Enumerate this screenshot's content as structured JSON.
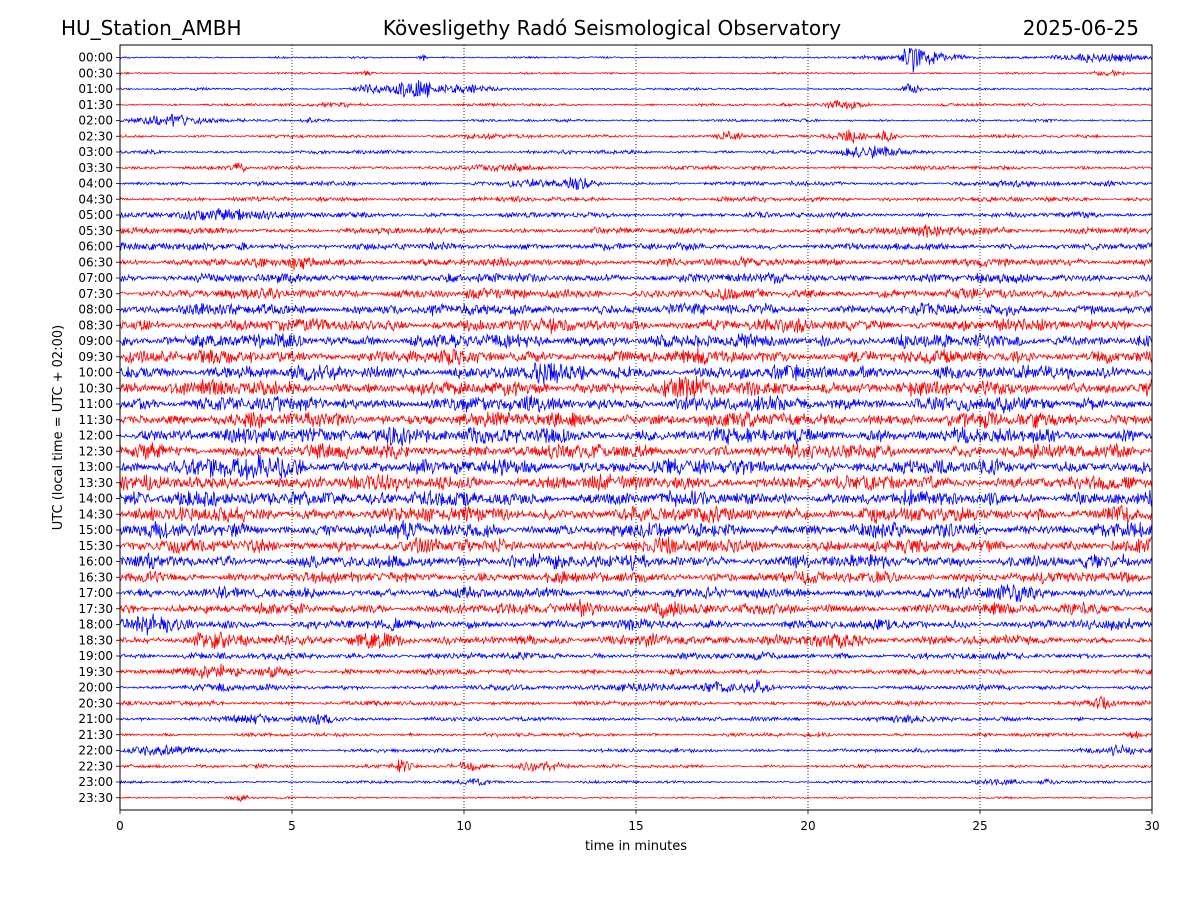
{
  "header": {
    "station": "HU_Station_AMBH",
    "title": "Kövesligethy Radó Seismological Observatory",
    "date": "2025-06-25"
  },
  "chart_data": {
    "type": "line",
    "chart_kind": "helicorder",
    "xlabel": "time in minutes",
    "ylabel": "UTC (local time = UTC + 02:00)",
    "xlim": [
      0,
      30
    ],
    "x_ticks": [
      0,
      5,
      10,
      15,
      20,
      25,
      30
    ],
    "x_grid": "dotted vertical lines at each x tick",
    "row_labels": [
      "00:00",
      "00:30",
      "01:00",
      "01:30",
      "02:00",
      "02:30",
      "03:00",
      "03:30",
      "04:00",
      "04:30",
      "05:00",
      "05:30",
      "06:00",
      "06:30",
      "07:00",
      "07:30",
      "08:00",
      "08:30",
      "09:00",
      "09:30",
      "10:00",
      "10:30",
      "11:00",
      "11:30",
      "12:00",
      "12:30",
      "13:00",
      "13:30",
      "14:00",
      "14:30",
      "15:00",
      "15:30",
      "16:00",
      "16:30",
      "17:00",
      "17:30",
      "18:00",
      "18:30",
      "19:00",
      "19:30",
      "20:00",
      "20:30",
      "21:00",
      "21:30",
      "22:00",
      "22:30",
      "23:00",
      "23:30"
    ],
    "trace_colors": [
      "#0000ff",
      "#ff0000"
    ],
    "trace_color_rule": "alternating rows, starting with blue at 00:00",
    "row_activity": [
      0.35,
      0.35,
      0.45,
      0.5,
      0.5,
      0.6,
      0.7,
      0.75,
      0.8,
      0.9,
      1.0,
      1.2,
      1.4,
      1.6,
      1.8,
      2.0,
      2.2,
      2.5,
      2.6,
      2.7,
      2.8,
      2.9,
      2.9,
      2.9,
      2.9,
      2.8,
      2.9,
      2.9,
      2.9,
      2.9,
      2.8,
      2.7,
      2.5,
      2.2,
      2.1,
      2.0,
      1.9,
      1.7,
      1.3,
      1.1,
      1.0,
      0.9,
      0.8,
      0.7,
      0.7,
      0.6,
      0.5,
      0.35
    ],
    "bursts": [
      {
        "row": "00:00",
        "minute": 23.1,
        "width_min": 0.4,
        "amp": 5.0
      },
      {
        "row": "00:00",
        "minute": 23.8,
        "width_min": 0.8,
        "amp": 1.6
      },
      {
        "row": "00:00",
        "minute": 22.0,
        "width_min": 0.5,
        "amp": 0.8
      },
      {
        "row": "00:00",
        "minute": 28.6,
        "width_min": 1.2,
        "amp": 1.8
      },
      {
        "row": "00:00",
        "minute": 8.8,
        "width_min": 0.1,
        "amp": 1.4
      },
      {
        "row": "00:30",
        "minute": 28.8,
        "width_min": 0.4,
        "amp": 1.2
      },
      {
        "row": "00:30",
        "minute": 7.2,
        "width_min": 0.3,
        "amp": 0.6
      },
      {
        "row": "01:00",
        "minute": 8.4,
        "width_min": 0.4,
        "amp": 3.0
      },
      {
        "row": "01:00",
        "minute": 8.8,
        "width_min": 0.2,
        "amp": 3.5
      },
      {
        "row": "01:00",
        "minute": 7.4,
        "width_min": 0.5,
        "amp": 2.0
      },
      {
        "row": "01:00",
        "minute": 10.0,
        "width_min": 0.8,
        "amp": 1.6
      },
      {
        "row": "01:00",
        "minute": 23.0,
        "width_min": 0.2,
        "amp": 2.5
      },
      {
        "row": "01:30",
        "minute": 21.0,
        "width_min": 0.5,
        "amp": 2.2
      },
      {
        "row": "01:30",
        "minute": 6.5,
        "width_min": 0.6,
        "amp": 0.9
      },
      {
        "row": "02:00",
        "minute": 1.5,
        "width_min": 1.2,
        "amp": 2.2
      },
      {
        "row": "02:00",
        "minute": 5.5,
        "width_min": 0.2,
        "amp": 0.8
      },
      {
        "row": "02:30",
        "minute": 17.7,
        "width_min": 0.4,
        "amp": 1.6
      },
      {
        "row": "02:30",
        "minute": 21.2,
        "width_min": 0.5,
        "amp": 2.4
      },
      {
        "row": "02:30",
        "minute": 22.3,
        "width_min": 0.3,
        "amp": 2.0
      },
      {
        "row": "02:30",
        "minute": 10.5,
        "width_min": 0.6,
        "amp": 1.0
      },
      {
        "row": "03:00",
        "minute": 22.0,
        "width_min": 1.0,
        "amp": 1.8
      },
      {
        "row": "03:30",
        "minute": 3.5,
        "width_min": 0.15,
        "amp": 2.2
      },
      {
        "row": "03:30",
        "minute": 11.0,
        "width_min": 1.0,
        "amp": 0.8
      },
      {
        "row": "04:00",
        "minute": 13.3,
        "width_min": 0.4,
        "amp": 2.0
      },
      {
        "row": "04:00",
        "minute": 12.0,
        "width_min": 0.6,
        "amp": 1.2
      },
      {
        "row": "04:00",
        "minute": 28.6,
        "width_min": 0.3,
        "amp": 1.2
      },
      {
        "row": "04:00",
        "minute": 26.0,
        "width_min": 0.5,
        "amp": 1.0
      },
      {
        "row": "05:00",
        "minute": 3.0,
        "width_min": 1.5,
        "amp": 2.0
      },
      {
        "row": "05:30",
        "minute": 24.0,
        "width_min": 1.5,
        "amp": 1.5
      },
      {
        "row": "06:00",
        "minute": 3.6,
        "width_min": 0.15,
        "amp": 2.0
      },
      {
        "row": "06:30",
        "minute": 5.2,
        "width_min": 0.5,
        "amp": 1.6
      },
      {
        "row": "10:00",
        "minute": 12.4,
        "width_min": 0.6,
        "amp": 1.8
      },
      {
        "row": "10:30",
        "minute": 16.5,
        "width_min": 0.5,
        "amp": 2.0
      },
      {
        "row": "12:00",
        "minute": 8.0,
        "width_min": 1.0,
        "amp": 2.0
      },
      {
        "row": "13:00",
        "minute": 4.0,
        "width_min": 1.2,
        "amp": 2.2
      },
      {
        "row": "14:00",
        "minute": 5.8,
        "width_min": 0.5,
        "amp": 2.0
      },
      {
        "row": "16:00",
        "minute": 12.0,
        "width_min": 0.8,
        "amp": 1.8
      },
      {
        "row": "17:00",
        "minute": 26.0,
        "width_min": 0.8,
        "amp": 1.5
      },
      {
        "row": "17:30",
        "minute": 13.3,
        "width_min": 0.6,
        "amp": 2.2
      },
      {
        "row": "17:30",
        "minute": 15.7,
        "width_min": 0.6,
        "amp": 2.4
      },
      {
        "row": "17:30",
        "minute": 28.0,
        "width_min": 0.7,
        "amp": 1.4
      },
      {
        "row": "18:00",
        "minute": 1.0,
        "width_min": 1.0,
        "amp": 2.0
      },
      {
        "row": "18:30",
        "minute": 2.8,
        "width_min": 0.8,
        "amp": 2.4
      },
      {
        "row": "18:30",
        "minute": 7.5,
        "width_min": 0.8,
        "amp": 2.4
      },
      {
        "row": "18:30",
        "minute": 15.3,
        "width_min": 0.8,
        "amp": 2.0
      },
      {
        "row": "18:30",
        "minute": 20.8,
        "width_min": 0.8,
        "amp": 2.2
      },
      {
        "row": "19:30",
        "minute": 2.8,
        "width_min": 0.8,
        "amp": 1.8
      },
      {
        "row": "19:30",
        "minute": 4.6,
        "width_min": 0.5,
        "amp": 1.4
      },
      {
        "row": "20:00",
        "minute": 2.8,
        "width_min": 0.5,
        "amp": 1.2
      },
      {
        "row": "20:00",
        "minute": 15.0,
        "width_min": 0.8,
        "amp": 1.6
      },
      {
        "row": "20:00",
        "minute": 17.3,
        "width_min": 0.5,
        "amp": 2.0
      },
      {
        "row": "20:00",
        "minute": 18.5,
        "width_min": 0.4,
        "amp": 1.8
      },
      {
        "row": "20:30",
        "minute": 28.5,
        "width_min": 0.3,
        "amp": 2.2
      },
      {
        "row": "21:00",
        "minute": 3.8,
        "width_min": 0.6,
        "amp": 1.6
      },
      {
        "row": "21:00",
        "minute": 5.8,
        "width_min": 0.5,
        "amp": 1.8
      },
      {
        "row": "21:00",
        "minute": 22.8,
        "width_min": 0.8,
        "amp": 1.2
      },
      {
        "row": "21:30",
        "minute": 29.5,
        "width_min": 0.3,
        "amp": 1.2
      },
      {
        "row": "22:00",
        "minute": 1.2,
        "width_min": 0.8,
        "amp": 1.8
      },
      {
        "row": "22:00",
        "minute": 29.0,
        "width_min": 0.6,
        "amp": 1.4
      },
      {
        "row": "22:30",
        "minute": 8.2,
        "width_min": 0.3,
        "amp": 2.5
      },
      {
        "row": "22:30",
        "minute": 10.2,
        "width_min": 0.4,
        "amp": 1.8
      },
      {
        "row": "22:30",
        "minute": 12.3,
        "width_min": 0.8,
        "amp": 1.6
      },
      {
        "row": "22:30",
        "minute": 4.0,
        "width_min": 0.3,
        "amp": 1.2
      },
      {
        "row": "23:00",
        "minute": 10.3,
        "width_min": 0.6,
        "amp": 1.2
      },
      {
        "row": "23:00",
        "minute": 25.5,
        "width_min": 0.8,
        "amp": 1.0
      },
      {
        "row": "23:00",
        "minute": 27.0,
        "width_min": 0.3,
        "amp": 1.0
      },
      {
        "row": "23:30",
        "minute": 3.5,
        "width_min": 0.3,
        "amp": 1.2
      }
    ]
  }
}
